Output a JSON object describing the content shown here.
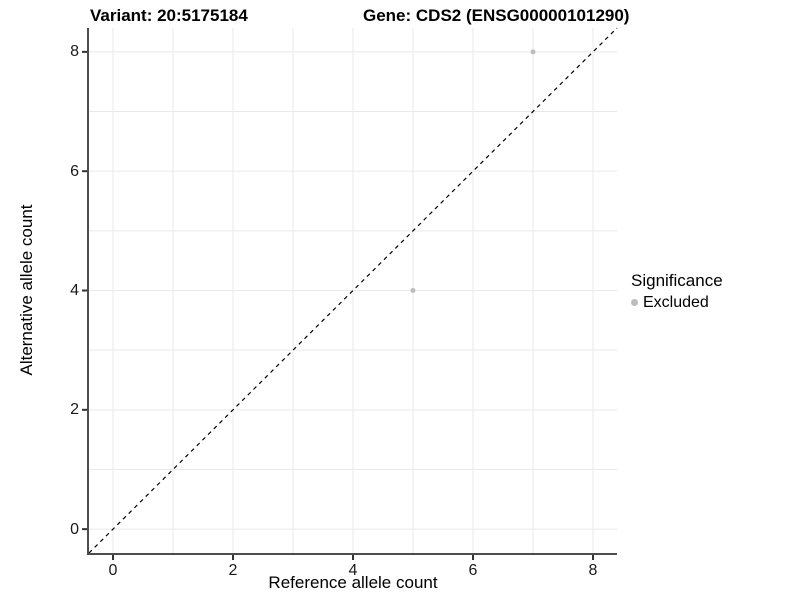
{
  "chart_data": {
    "type": "scatter",
    "title_left": "Variant: 20:5175184",
    "title_right": "Gene: CDS2 (ENSG00000101290)",
    "xlabel": "Reference allele count",
    "ylabel": "Alternative allele count",
    "xlim": [
      -0.4,
      8.4
    ],
    "ylim": [
      -0.4,
      8.4
    ],
    "xticks": [
      0,
      2,
      4,
      6,
      8
    ],
    "yticks": [
      0,
      2,
      4,
      6,
      8
    ],
    "grid_values": [
      0,
      1,
      2,
      3,
      4,
      5,
      6,
      7,
      8
    ],
    "grid": true,
    "legend_position": "right-center",
    "legend": {
      "title": "Significance",
      "items": [
        {
          "label": "Excluded",
          "color": "#bdbdbd"
        }
      ]
    },
    "series": [
      {
        "name": "Excluded",
        "color": "#bdbdbd",
        "points": [
          {
            "x": 5,
            "y": 4
          },
          {
            "x": 7,
            "y": 8
          }
        ]
      }
    ],
    "reference_line": {
      "type": "identity y=x",
      "style": "dashed",
      "color": "#000000"
    },
    "colors": {
      "background": "#ffffff",
      "gridline": "#e9e9e9",
      "axis_line": "#4d4d4d",
      "tick_mark": "#333333",
      "text": "#000000",
      "point": "#bdbdbd"
    }
  }
}
